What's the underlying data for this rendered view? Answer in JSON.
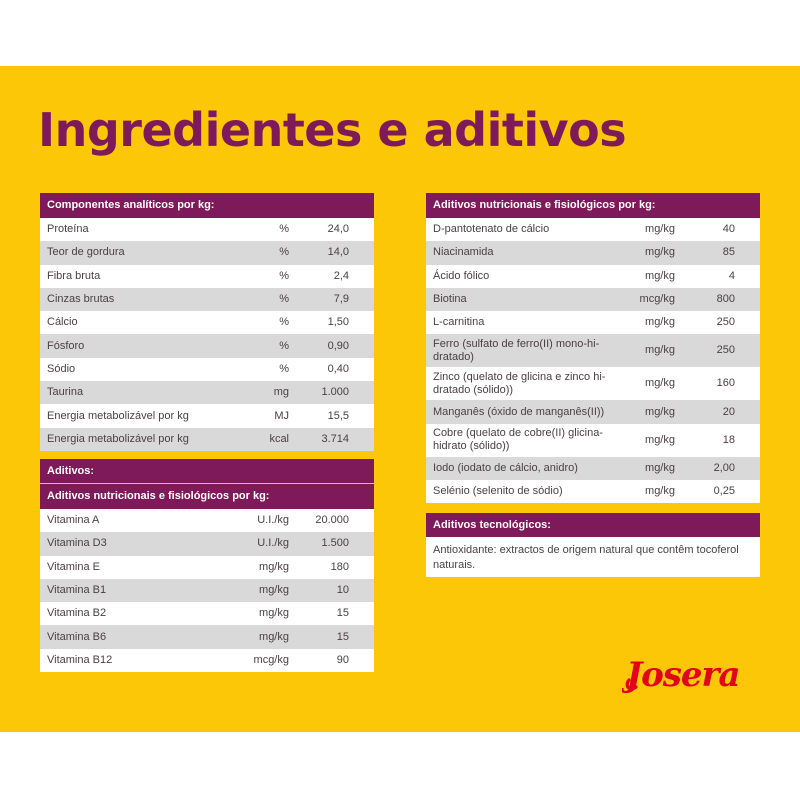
{
  "title": "Ingredientes e aditivos",
  "analytical": {
    "header": "Componentes analíticos por kg:",
    "rows": [
      {
        "name": "Proteína",
        "unit": "%",
        "value": "24,0"
      },
      {
        "name": "Teor de gordura",
        "unit": "%",
        "value": "14,0"
      },
      {
        "name": "Fibra bruta",
        "unit": "%",
        "value": "2,4"
      },
      {
        "name": "Cinzas brutas",
        "unit": "%",
        "value": "7,9"
      },
      {
        "name": "Cálcio",
        "unit": "%",
        "value": "1,50"
      },
      {
        "name": "Fósforo",
        "unit": "%",
        "value": "0,90"
      },
      {
        "name": "Sódio",
        "unit": "%",
        "value": "0,40"
      },
      {
        "name": "Taurina",
        "unit": "mg",
        "value": "1.000"
      },
      {
        "name": "Energia metabolizável por kg",
        "unit": "MJ",
        "value": "15,5"
      },
      {
        "name": "Energia metabolizável por kg",
        "unit": "kcal",
        "value": "3.714"
      }
    ]
  },
  "additives": {
    "header": "Aditivos:",
    "subheader": "Aditivos nutricionais e fisiológicos por kg:",
    "rows": [
      {
        "name": "Vitamina A",
        "unit": "U.I./kg",
        "value": "20.000"
      },
      {
        "name": "Vitamina D3",
        "unit": "U.I./kg",
        "value": "1.500"
      },
      {
        "name": "Vitamina E",
        "unit": "mg/kg",
        "value": "180"
      },
      {
        "name": "Vitamina B1",
        "unit": "mg/kg",
        "value": "10"
      },
      {
        "name": "Vitamina B2",
        "unit": "mg/kg",
        "value": "15"
      },
      {
        "name": "Vitamina B6",
        "unit": "mg/kg",
        "value": "15"
      },
      {
        "name": "Vitamina B12",
        "unit": "mcg/kg",
        "value": "90"
      }
    ]
  },
  "nutritional": {
    "header": "Aditivos nutricionais e fisiológicos por kg:",
    "rows": [
      {
        "name": "D-pantotenato de cálcio",
        "unit": "mg/kg",
        "value": "40"
      },
      {
        "name": "Niacinamida",
        "unit": "mg/kg",
        "value": "85"
      },
      {
        "name": "Ácido fólico",
        "unit": "mg/kg",
        "value": "4"
      },
      {
        "name": "Biotina",
        "unit": "mcg/kg",
        "value": "800"
      },
      {
        "name": "L-carnitina",
        "unit": "mg/kg",
        "value": "250"
      },
      {
        "name": "Ferro (sulfato de ferro(II) mono-hi-dratado)",
        "unit": "mg/kg",
        "value": "250"
      },
      {
        "name": "Zinco (quelato de glicina e zinco hi-dratado (sólido))",
        "unit": "mg/kg",
        "value": "160"
      },
      {
        "name": "Manganês (óxido de manganês(II))",
        "unit": "mg/kg",
        "value": "20"
      },
      {
        "name": "Cobre (quelato de cobre(II) glicina-hidrato (sólido))",
        "unit": "mg/kg",
        "value": "18"
      },
      {
        "name": "Iodo (iodato de cálcio, anidro)",
        "unit": "mg/kg",
        "value": "2,00"
      },
      {
        "name": "Selénio (selenito de sódio)",
        "unit": "mg/kg",
        "value": "0,25"
      }
    ]
  },
  "technological": {
    "header": "Aditivos tecnológicos:",
    "text": "Antioxidante: extractos de origem natural que contêm tocoferol naturais."
  },
  "brand": {
    "logo_text": "Josera",
    "color": "#e2001a"
  },
  "colors": {
    "background": "#fbc707",
    "accent": "#7e1a5a",
    "row_alt": "#d9d9d9"
  }
}
